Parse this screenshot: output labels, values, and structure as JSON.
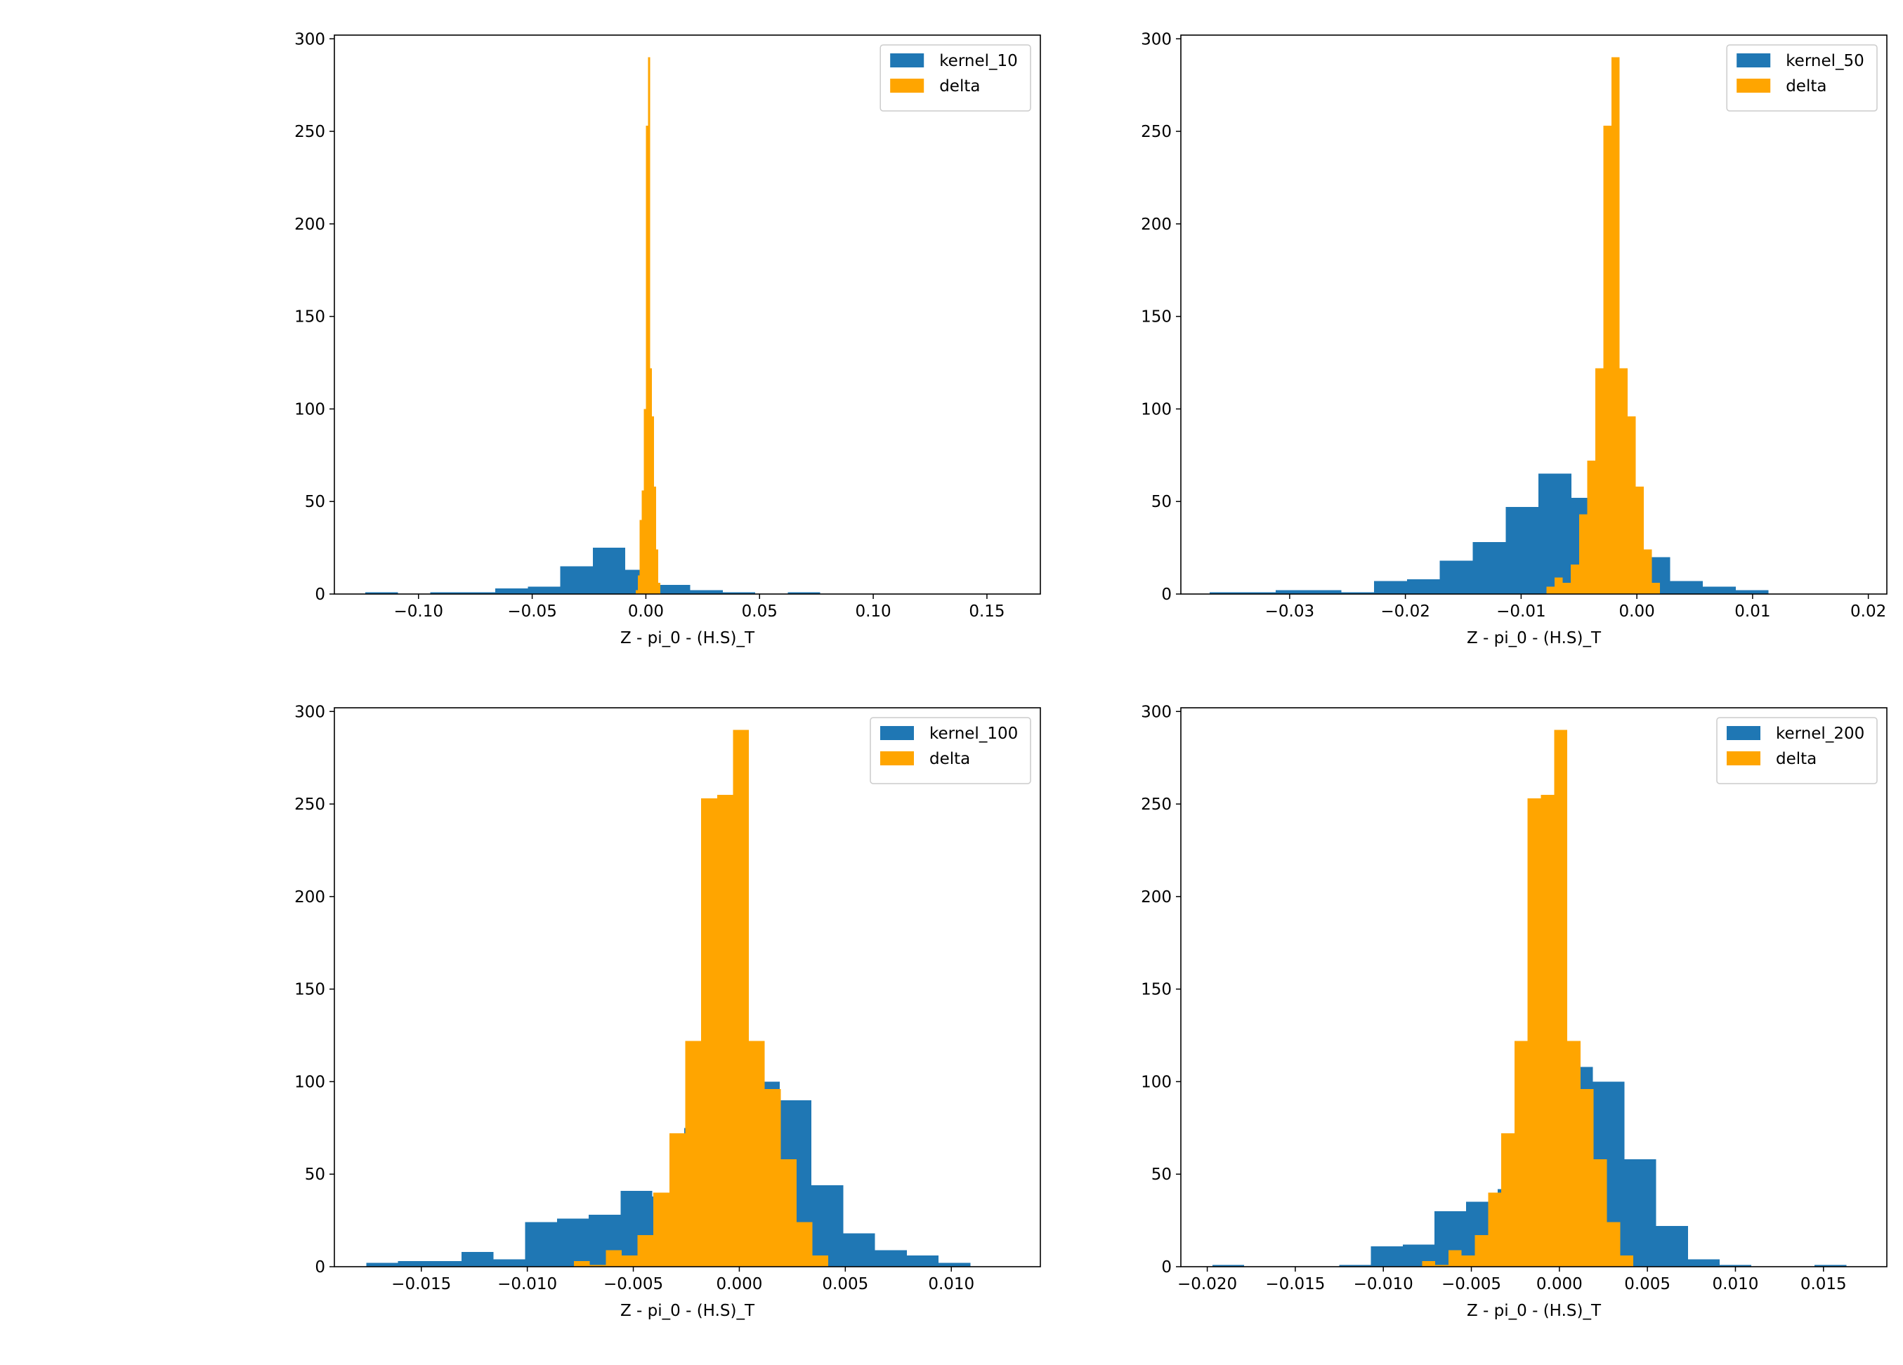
{
  "colors": {
    "kernel": "#1f77b4",
    "delta": "#ffa500",
    "axes": "#000000",
    "legend_border": "#cccccc"
  },
  "chart_data": [
    {
      "type": "bar",
      "title": "",
      "xlabel": "Z - pi_0 - (H.S)_T",
      "ylabel": "",
      "xlim": [
        -0.137,
        0.1735
      ],
      "ylim": [
        0,
        302
      ],
      "xticks": [
        -0.1,
        -0.05,
        0.0,
        0.05,
        0.1,
        0.15
      ],
      "xtick_labels": [
        "−0.10",
        "−0.05",
        "0.00",
        "0.05",
        "0.10",
        "0.15"
      ],
      "yticks": [
        0,
        50,
        100,
        150,
        200,
        250,
        300
      ],
      "ytick_labels": [
        "0",
        "50",
        "100",
        "150",
        "200",
        "250",
        "300"
      ],
      "legend": {
        "placement": "top-right",
        "entries": [
          "kernel_10",
          "delta"
        ]
      },
      "series": [
        {
          "name": "kernel_10",
          "bin_start": -0.1234,
          "bin_width": 0.01429,
          "values": [
            1,
            0,
            1,
            1,
            3,
            4,
            15,
            25,
            13,
            5,
            2,
            1,
            0,
            1,
            0,
            0,
            0,
            0,
            0,
            0,
            0,
            0
          ]
        },
        {
          "name": "delta",
          "bin_start": -0.0045,
          "bin_width": 0.0009,
          "values": [
            2,
            10,
            40,
            56,
            100,
            253,
            290,
            122,
            96,
            58,
            24,
            6
          ]
        }
      ]
    },
    {
      "type": "bar",
      "title": "",
      "xlabel": "Z - pi_0 - (H.S)_T",
      "ylabel": "",
      "xlim": [
        -0.0394,
        0.0216
      ],
      "ylim": [
        0,
        302
      ],
      "xticks": [
        -0.03,
        -0.02,
        -0.01,
        0.0,
        0.01,
        0.02
      ],
      "xtick_labels": [
        "−0.03",
        "−0.02",
        "−0.01",
        "0.00",
        "0.01",
        "0.02"
      ],
      "yticks": [
        0,
        50,
        100,
        150,
        200,
        250,
        300
      ],
      "ytick_labels": [
        "0",
        "50",
        "100",
        "150",
        "200",
        "250",
        "300"
      ],
      "legend": {
        "placement": "top-right",
        "entries": [
          "kernel_50",
          "delta"
        ]
      },
      "series": [
        {
          "name": "kernel_50",
          "bin_start": -0.0369,
          "bin_width": 0.00284,
          "values": [
            1,
            1,
            2,
            2,
            1,
            7,
            8,
            18,
            28,
            47,
            65,
            52,
            46,
            20,
            7,
            4,
            2,
            0
          ]
        },
        {
          "name": "delta",
          "bin_start": -0.0078,
          "bin_width": 0.0007,
          "values": [
            4,
            9,
            6,
            16,
            43,
            72,
            122,
            253,
            290,
            122,
            96,
            58,
            24,
            6
          ]
        }
      ]
    },
    {
      "type": "bar",
      "title": "",
      "xlabel": "Z - pi_0 - (H.S)_T",
      "ylabel": "",
      "xlim": [
        -0.0191,
        0.0142
      ],
      "ylim": [
        0,
        302
      ],
      "xticks": [
        -0.015,
        -0.01,
        -0.005,
        0.0,
        0.005,
        0.01
      ],
      "xtick_labels": [
        "−0.015",
        "−0.010",
        "−0.005",
        "0.000",
        "0.005",
        "0.010"
      ],
      "yticks": [
        0,
        50,
        100,
        150,
        200,
        250,
        300
      ],
      "ytick_labels": [
        "0",
        "50",
        "100",
        "150",
        "200",
        "250",
        "300"
      ],
      "legend": {
        "placement": "top-right",
        "entries": [
          "kernel_100",
          "delta"
        ]
      },
      "series": [
        {
          "name": "kernel_100",
          "bin_start": -0.0176,
          "bin_width": 0.0015,
          "values": [
            2,
            3,
            3,
            8,
            4,
            24,
            26,
            28,
            41,
            38,
            75,
            100,
            100,
            90,
            44,
            18,
            9,
            6,
            2
          ]
        },
        {
          "name": "delta",
          "bin_start": -0.0078,
          "bin_width": 0.00075,
          "values": [
            3,
            1,
            9,
            6,
            17,
            40,
            72,
            122,
            253,
            255,
            290,
            122,
            96,
            58,
            24,
            6
          ]
        }
      ]
    },
    {
      "type": "bar",
      "title": "",
      "xlabel": "Z - pi_0 - (H.S)_T",
      "ylabel": "",
      "xlim": [
        -0.0215,
        0.0186
      ],
      "ylim": [
        0,
        302
      ],
      "xticks": [
        -0.02,
        -0.015,
        -0.01,
        -0.005,
        0.0,
        0.005,
        0.01,
        0.015
      ],
      "xtick_labels": [
        "−0.020",
        "−0.015",
        "−0.010",
        "−0.005",
        "0.000",
        "0.005",
        "0.010",
        "0.015"
      ],
      "yticks": [
        0,
        50,
        100,
        150,
        200,
        250,
        300
      ],
      "ytick_labels": [
        "0",
        "50",
        "100",
        "150",
        "200",
        "250",
        "300"
      ],
      "legend": {
        "placement": "top-right",
        "entries": [
          "kernel_200",
          "delta"
        ]
      },
      "series": [
        {
          "name": "kernel_200",
          "bin_start": -0.0197,
          "bin_width": 0.0018,
          "values": [
            1,
            0,
            0,
            0,
            1,
            11,
            12,
            30,
            35,
            42,
            57,
            108,
            100,
            58,
            22,
            4,
            1,
            0,
            0,
            1
          ]
        },
        {
          "name": "delta",
          "bin_start": -0.0078,
          "bin_width": 0.00075,
          "values": [
            3,
            1,
            9,
            6,
            17,
            40,
            72,
            122,
            253,
            255,
            290,
            122,
            96,
            58,
            24,
            6
          ]
        }
      ]
    }
  ]
}
